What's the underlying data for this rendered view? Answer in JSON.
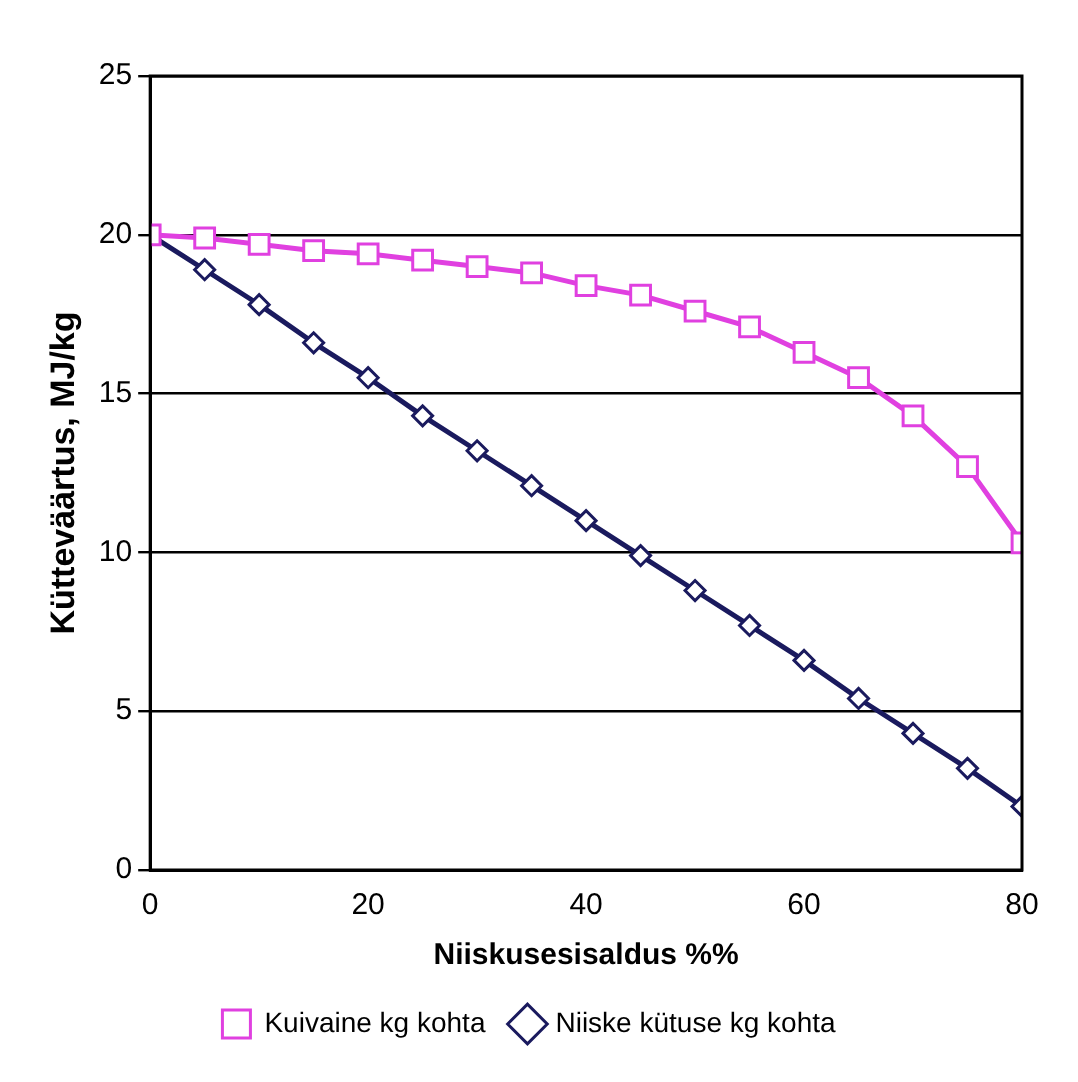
{
  "chart_data": {
    "type": "line",
    "xlabel": "Niiskusesisaldus %%",
    "ylabel": "Kütteväärtus, MJ/kg",
    "x": [
      0,
      5,
      10,
      15,
      20,
      25,
      30,
      35,
      40,
      45,
      50,
      55,
      60,
      65,
      70,
      75,
      80
    ],
    "series": [
      {
        "name": "Niiske kütuse kg kohta",
        "color": "#1a1a5e",
        "marker": "diamond",
        "values": [
          20,
          18.9,
          17.8,
          16.6,
          15.5,
          14.3,
          13.2,
          12.1,
          11,
          9.9,
          8.8,
          7.7,
          6.6,
          5.4,
          4.3,
          3.2,
          2
        ]
      },
      {
        "name": "Kuivaine kg kohta",
        "color": "#e040e0",
        "marker": "square",
        "values": [
          20,
          19.9,
          19.7,
          19.5,
          19.4,
          19.2,
          19,
          18.8,
          18.4,
          18.1,
          17.6,
          17.1,
          16.3,
          15.5,
          14.3,
          12.7,
          10.3
        ]
      }
    ],
    "xlim": [
      0,
      80
    ],
    "xticks": [
      0,
      20,
      40,
      60,
      80
    ],
    "ylim": [
      0,
      25
    ],
    "yticks": [
      0,
      5,
      10,
      15,
      20,
      25
    ],
    "grid": "y",
    "legend": "bottom",
    "line_style": "solid"
  }
}
